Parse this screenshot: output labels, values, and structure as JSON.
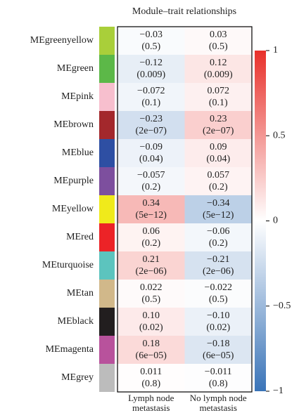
{
  "chart_data": {
    "type": "heatmap",
    "title": "Module–trait relationships",
    "rows": [
      "MEgreenyellow",
      "MEgreen",
      "MEpink",
      "MEbrown",
      "MEblue",
      "MEpurple",
      "MEyellow",
      "MEred",
      "MEturquoise",
      "MEtan",
      "MEblack",
      "MEmagenta",
      "MEgrey"
    ],
    "row_colors": [
      "#a9cf3a",
      "#5cb848",
      "#f7bfce",
      "#a3282c",
      "#2e4fa3",
      "#7d4f9e",
      "#f0ea1b",
      "#ec2327",
      "#5cc4be",
      "#d1b88a",
      "#221e1f",
      "#b8529c",
      "#bcbcbc"
    ],
    "columns": [
      "Lymph node metastasis",
      "No lymph node metastasis"
    ],
    "values": [
      [
        -0.03,
        0.03
      ],
      [
        -0.12,
        0.12
      ],
      [
        -0.072,
        0.072
      ],
      [
        -0.23,
        0.23
      ],
      [
        -0.09,
        0.09
      ],
      [
        -0.057,
        0.057
      ],
      [
        0.34,
        -0.34
      ],
      [
        0.06,
        -0.06
      ],
      [
        0.21,
        -0.21
      ],
      [
        0.022,
        -0.022
      ],
      [
        0.1,
        -0.1
      ],
      [
        0.18,
        -0.18
      ],
      [
        0.011,
        -0.011
      ]
    ],
    "value_labels": [
      [
        "−0.03",
        "0.03"
      ],
      [
        "−0.12",
        "0.12"
      ],
      [
        "−0.072",
        "0.072"
      ],
      [
        "−0.23",
        "0.23"
      ],
      [
        "−0.09",
        "0.09"
      ],
      [
        "−0.057",
        "0.057"
      ],
      [
        "0.34",
        "−0.34"
      ],
      [
        "0.06",
        "−0.06"
      ],
      [
        "0.21",
        "−0.21"
      ],
      [
        "0.022",
        "−0.022"
      ],
      [
        "0.10",
        "−0.10"
      ],
      [
        "0.18",
        "−0.18"
      ],
      [
        "0.011",
        "−0.011"
      ]
    ],
    "p_labels": [
      [
        "(0.5)",
        "(0.5)"
      ],
      [
        "(0.009)",
        "(0.009)"
      ],
      [
        "(0.1)",
        "(0.1)"
      ],
      [
        "(2e−07)",
        "(2e−07)"
      ],
      [
        "(0.04)",
        "(0.04)"
      ],
      [
        "(0.2)",
        "(0.2)"
      ],
      [
        "(5e−12)",
        "(5e−12)"
      ],
      [
        "(0.2)",
        "(0.2)"
      ],
      [
        "(2e−06)",
        "(2e−06)"
      ],
      [
        "(0.5)",
        "(0.5)"
      ],
      [
        "(0.02)",
        "(0.02)"
      ],
      [
        "(6e−05)",
        "(6e−05)"
      ],
      [
        "(0.8)",
        "(0.8)"
      ]
    ],
    "zlim": [
      -1,
      1
    ],
    "zticks": [
      {
        "value": -1,
        "label": "−1"
      },
      {
        "value": -0.5,
        "label": "−0.5"
      },
      0,
      0.5,
      1
    ],
    "colorscale": [
      "#3a74b8",
      "#ffffff",
      "#e8302a"
    ]
  }
}
